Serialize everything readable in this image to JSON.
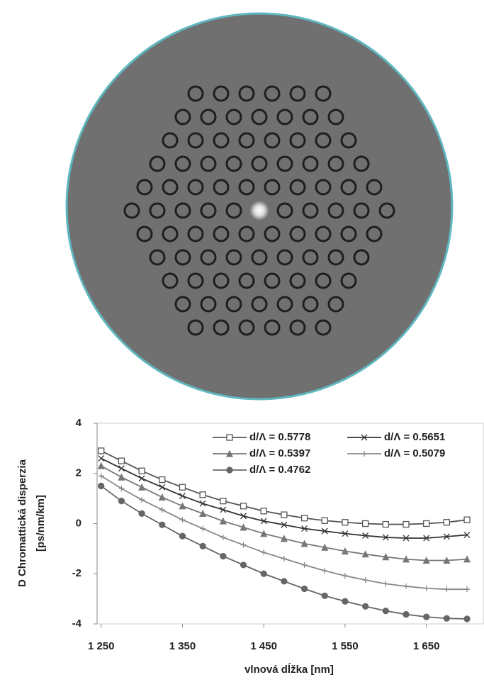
{
  "chart_data": {
    "type": "line",
    "x_label": "vlnová dĺžka [nm]",
    "y_label": [
      "D Chromattická disperzia",
      "[ps/nm/km]"
    ],
    "x": [
      1250,
      1275,
      1300,
      1325,
      1350,
      1375,
      1400,
      1425,
      1450,
      1475,
      1500,
      1525,
      1550,
      1575,
      1600,
      1625,
      1650,
      1675,
      1700
    ],
    "series": [
      {
        "name": "d/Λ = 0.5778",
        "color": "#555555",
        "marker": "square",
        "values": [
          2.9,
          2.5,
          2.1,
          1.75,
          1.45,
          1.15,
          0.9,
          0.7,
          0.5,
          0.35,
          0.22,
          0.12,
          0.05,
          0.0,
          -0.03,
          -0.03,
          0.0,
          0.05,
          0.15
        ]
      },
      {
        "name": "d/Λ = 0.5651",
        "color": "#333333",
        "marker": "x",
        "values": [
          2.6,
          2.2,
          1.8,
          1.45,
          1.1,
          0.8,
          0.55,
          0.3,
          0.1,
          -0.05,
          -0.2,
          -0.3,
          -0.4,
          -0.48,
          -0.55,
          -0.58,
          -0.58,
          -0.52,
          -0.45
        ]
      },
      {
        "name": "d/Λ = 0.5397",
        "color": "#777777",
        "marker": "triangle",
        "values": [
          2.3,
          1.85,
          1.45,
          1.05,
          0.7,
          0.4,
          0.1,
          -0.15,
          -0.4,
          -0.6,
          -0.8,
          -0.95,
          -1.1,
          -1.22,
          -1.33,
          -1.42,
          -1.47,
          -1.47,
          -1.42
        ]
      },
      {
        "name": "d/Λ = 0.5079",
        "color": "#888888",
        "marker": "plus",
        "values": [
          1.9,
          1.4,
          0.95,
          0.55,
          0.15,
          -0.2,
          -0.55,
          -0.85,
          -1.15,
          -1.4,
          -1.65,
          -1.88,
          -2.08,
          -2.25,
          -2.4,
          -2.5,
          -2.58,
          -2.62,
          -2.62
        ]
      },
      {
        "name": "d/Λ = 0.4762",
        "color": "#666666",
        "marker": "circle",
        "values": [
          1.5,
          0.9,
          0.4,
          -0.05,
          -0.5,
          -0.9,
          -1.3,
          -1.65,
          -2.0,
          -2.3,
          -2.6,
          -2.88,
          -3.1,
          -3.3,
          -3.48,
          -3.62,
          -3.72,
          -3.78,
          -3.8
        ]
      }
    ],
    "xlim": [
      1245,
      1720
    ],
    "xticks": [
      {
        "value": 1250,
        "label": "1 250"
      },
      {
        "value": 1350,
        "label": "1 350"
      },
      {
        "value": 1450,
        "label": "1 450"
      },
      {
        "value": 1550,
        "label": "1 550"
      },
      {
        "value": 1650,
        "label": "1 650"
      }
    ],
    "ylim": [
      -4,
      4
    ],
    "yticks": [
      -4,
      -2,
      0,
      2,
      4
    ],
    "grid": false,
    "legend": "upper right"
  }
}
